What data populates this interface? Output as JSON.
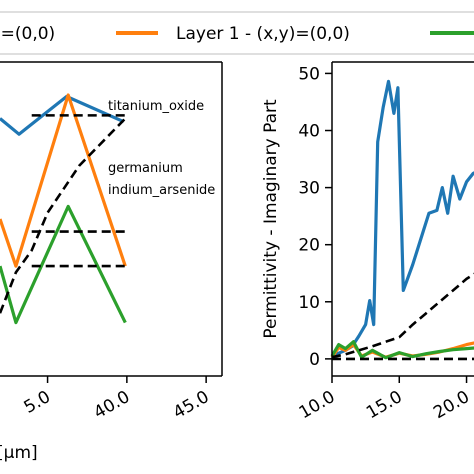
{
  "legend": {
    "items": [
      {
        "label": ")=(0,0)",
        "color": "#1f77b4"
      },
      {
        "label": "Layer 1 - (x,y)=(0,0)",
        "color": "#ff7f0e"
      },
      {
        "label": "",
        "color": "#2ca02c"
      }
    ]
  },
  "chart_data": [
    {
      "type": "line",
      "xlabel": "[µm]",
      "ylabel": "",
      "xlim": [
        32,
        46
      ],
      "ylim": [
        0,
        10
      ],
      "x_ticks": [
        "5.0",
        "40.0",
        "45.0"
      ],
      "grid": false,
      "series": [
        {
          "color": "#1f77b4",
          "x": [
            32,
            33.2,
            36.2,
            39.8
          ],
          "y": [
            8.2,
            7.7,
            8.9,
            8.1
          ]
        },
        {
          "color": "#ff7f0e",
          "x": [
            32,
            33,
            36.3,
            39.9
          ],
          "y": [
            5.0,
            3.5,
            8.95,
            3.5
          ]
        },
        {
          "color": "#2ca02c",
          "x": [
            32,
            33,
            36.3,
            39.9
          ],
          "y": [
            3.5,
            1.7,
            5.4,
            1.7
          ]
        },
        {
          "color": "#000000",
          "dashed": true,
          "x": [
            32,
            33,
            34,
            35,
            37,
            39.9
          ],
          "y": [
            2.0,
            3.3,
            4.0,
            5.2,
            6.7,
            8.2
          ]
        }
      ],
      "annotations": [
        {
          "text": "titanium_oxide",
          "x": 40,
          "y": 8.3,
          "color": "#000000",
          "dashed": true
        },
        {
          "text": "germanium",
          "x": 40,
          "y": 4.6,
          "color": "#000000",
          "dashed": true
        },
        {
          "text": "indium_arsenide",
          "x": 40,
          "y": 3.5,
          "color": "#000000",
          "dashed": true
        }
      ]
    },
    {
      "type": "line",
      "xlabel": "",
      "ylabel": "Permittivity - Imaginary Part",
      "xlim": [
        10,
        21
      ],
      "ylim": [
        -3,
        52
      ],
      "x_ticks": [
        "10.0",
        "15.0",
        "20.0"
      ],
      "y_ticks": [
        "0",
        "10",
        "20",
        "30",
        "40",
        "50"
      ],
      "grid": false,
      "series": [
        {
          "color": "#1f77b4",
          "x": [
            10,
            10.5,
            11,
            11.5,
            12,
            12.5,
            12.8,
            13.1,
            13.4,
            13.8,
            14.2,
            14.6,
            14.9,
            15.3,
            16,
            16.6,
            17.2,
            17.8,
            18.2,
            18.6,
            19,
            19.5,
            20,
            20.5,
            21
          ],
          "y": [
            0.5,
            1.0,
            1.5,
            2.2,
            4.0,
            6.0,
            10.2,
            6.0,
            38.0,
            44.0,
            48.6,
            43.0,
            47.5,
            12.0,
            16.5,
            21.0,
            25.5,
            26.0,
            30.0,
            25.5,
            32.0,
            28.0,
            31.0,
            32.5,
            33.0
          ]
        },
        {
          "color": "#ff7f0e",
          "x": [
            10,
            10.5,
            11,
            11.6,
            12.2,
            13,
            14,
            15,
            16,
            17,
            18,
            19,
            20,
            21
          ],
          "y": [
            0.3,
            2.0,
            1.5,
            2.5,
            0.5,
            1.2,
            0.3,
            1.0,
            0.5,
            0.8,
            1.2,
            1.8,
            2.5,
            3.0
          ]
        },
        {
          "color": "#2ca02c",
          "x": [
            10,
            10.5,
            11,
            11.6,
            12.2,
            13,
            14,
            15,
            16,
            17,
            18,
            19,
            20,
            21
          ],
          "y": [
            0.5,
            2.5,
            1.8,
            3.0,
            0.3,
            1.5,
            0.2,
            1.1,
            0.4,
            0.9,
            1.3,
            1.6,
            1.8,
            2.0
          ]
        },
        {
          "color": "#000000",
          "dashed": true,
          "x": [
            10,
            11,
            12,
            13,
            14,
            15,
            16,
            17,
            18,
            19,
            20,
            21
          ],
          "y": [
            0.3,
            0.8,
            1.5,
            2.2,
            3.0,
            3.8,
            6.0,
            8.0,
            10.0,
            12.0,
            14.0,
            15.5
          ]
        },
        {
          "color": "#000000",
          "dashed": true,
          "x": [
            10,
            21
          ],
          "y": [
            0,
            0
          ]
        }
      ]
    }
  ]
}
